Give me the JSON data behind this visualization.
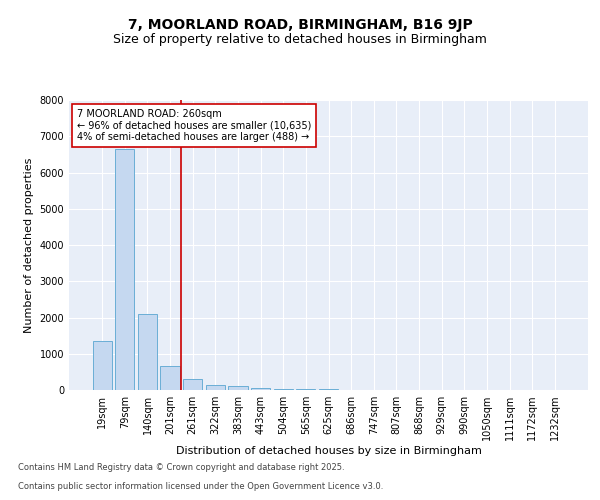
{
  "title1": "7, MOORLAND ROAD, BIRMINGHAM, B16 9JP",
  "title2": "Size of property relative to detached houses in Birmingham",
  "xlabel": "Distribution of detached houses by size in Birmingham",
  "ylabel": "Number of detached properties",
  "categories": [
    "19sqm",
    "79sqm",
    "140sqm",
    "201sqm",
    "261sqm",
    "322sqm",
    "383sqm",
    "443sqm",
    "504sqm",
    "565sqm",
    "625sqm",
    "686sqm",
    "747sqm",
    "807sqm",
    "868sqm",
    "929sqm",
    "990sqm",
    "1050sqm",
    "1111sqm",
    "1172sqm",
    "1232sqm"
  ],
  "values": [
    1340,
    6650,
    2100,
    650,
    300,
    150,
    100,
    60,
    35,
    20,
    15,
    10,
    8,
    6,
    5,
    4,
    3,
    2,
    1,
    1,
    1
  ],
  "bar_color": "#c5d8f0",
  "bar_edgecolor": "#6aaed6",
  "vline_x_index": 4,
  "vline_color": "#cc0000",
  "annotation_text": "7 MOORLAND ROAD: 260sqm\n← 96% of detached houses are smaller (10,635)\n4% of semi-detached houses are larger (488) →",
  "annotation_box_facecolor": "#ffffff",
  "annotation_box_edgecolor": "#cc0000",
  "ylim": [
    0,
    8000
  ],
  "yticks": [
    0,
    1000,
    2000,
    3000,
    4000,
    5000,
    6000,
    7000,
    8000
  ],
  "bg_color": "#e8eef8",
  "footer_line1": "Contains HM Land Registry data © Crown copyright and database right 2025.",
  "footer_line2": "Contains public sector information licensed under the Open Government Licence v3.0.",
  "title1_fontsize": 10,
  "title2_fontsize": 9,
  "annot_fontsize": 7,
  "ylabel_fontsize": 8,
  "xlabel_fontsize": 8,
  "tick_fontsize": 7,
  "footer_fontsize": 6
}
